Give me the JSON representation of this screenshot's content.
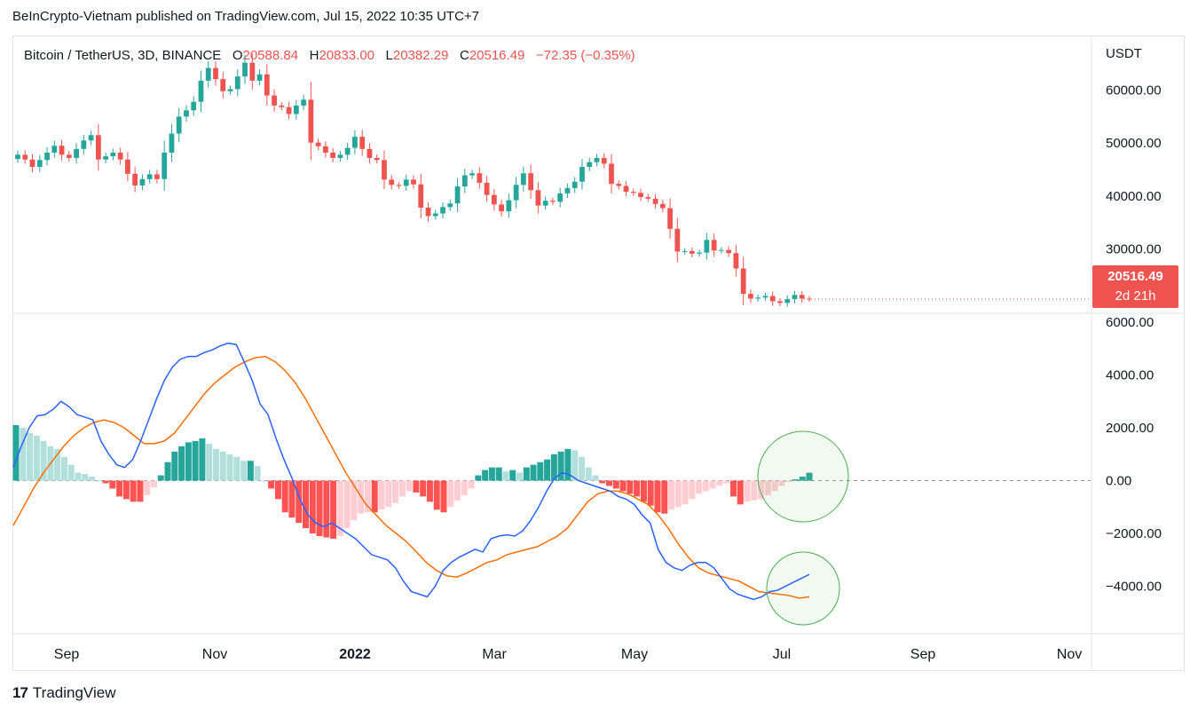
{
  "header": {
    "text": "BeInCrypto-Vietnam published on TradingView.com, Jul 15, 2022 10:35 UTC+7"
  },
  "legend": {
    "symbol": "Bitcoin / TetherUS, 3D, BINANCE",
    "open_label": "O",
    "open": "20588.84",
    "high_label": "H",
    "high": "20833.00",
    "low_label": "L",
    "low": "20382.29",
    "close_label": "C",
    "close": "20516.49",
    "change": "−72.35 (−0.35%)"
  },
  "price_badge": {
    "price": "20516.49",
    "countdown": "2d 21h"
  },
  "currency": "USDT",
  "footer": {
    "brand_glyph": "17",
    "brand": "TradingView"
  },
  "colors": {
    "up": "#26a69a",
    "down": "#ef5350",
    "hist_up_strong": "#26a69a",
    "hist_up_weak": "#b2dfdb",
    "hist_down_strong": "#ff5252",
    "hist_down_weak": "#ffcdd2",
    "macd_line": "#2962ff",
    "signal_line": "#ff6d00",
    "highlight_circle": "#4caf50"
  },
  "chart_data": [
    {
      "type": "candlestick",
      "title": "Bitcoin / TetherUS, 3D, BINANCE",
      "x_tick_labels": [
        "Sep",
        "Nov",
        "2022",
        "Mar",
        "May",
        "Jul",
        "Sep",
        "Nov"
      ],
      "y_tick_labels": [
        "30000.00",
        "40000.00",
        "50000.00",
        "60000.00"
      ],
      "y_ticks": [
        30000,
        40000,
        50000,
        60000
      ],
      "ylim": [
        18000,
        70000
      ],
      "grid": false,
      "last_price": 20516.49,
      "close": [
        47800,
        46900,
        45500,
        46800,
        48200,
        49500,
        47800,
        47200,
        48900,
        50500,
        51500,
        46900,
        47500,
        48200,
        46900,
        44200,
        42000,
        43200,
        44100,
        43200,
        48200,
        51800,
        55000,
        56200,
        57800,
        61800,
        64200,
        62100,
        59800,
        60200,
        62600,
        65200,
        61800,
        63000,
        59000,
        57100,
        56800,
        55500,
        57100,
        58200,
        50100,
        49400,
        48200,
        47200,
        47800,
        49100,
        51200,
        48900,
        47200,
        46800,
        43100,
        42100,
        41900,
        43100,
        42200,
        37800,
        36200,
        36700,
        37900,
        38600,
        41800,
        43900,
        44300,
        42500,
        40200,
        38400,
        37100,
        39200,
        42100,
        44300,
        41100,
        38200,
        39100,
        38900,
        40500,
        41500,
        42700,
        45500,
        46400,
        47200,
        46100,
        42300,
        41900,
        40800,
        40600,
        39800,
        39500,
        38500,
        37700,
        33800,
        29500,
        29600,
        29100,
        29300,
        31700,
        29700,
        29800,
        29200,
        26300,
        21500,
        20600,
        20800,
        21100,
        20100,
        19800,
        20500,
        21300,
        20600,
        20516.49
      ]
    },
    {
      "type": "macd",
      "y_tick_labels": [
        "6000.00",
        "4000.00",
        "2000.00",
        "0.00",
        "−2000.00",
        "−4000.00"
      ],
      "y_ticks": [
        6000,
        4000,
        2000,
        0,
        -2000,
        -4000
      ],
      "ylim": [
        -5760,
        6300
      ],
      "zero_line": "dashed",
      "macd": [
        500,
        1300,
        2000,
        2450,
        2500,
        2700,
        3000,
        2800,
        2500,
        2400,
        2300,
        1500,
        1000,
        600,
        500,
        800,
        1500,
        2300,
        3100,
        3800,
        4300,
        4600,
        4700,
        4700,
        4850,
        4950,
        5100,
        5200,
        5150,
        4500,
        3800,
        2900,
        2500,
        1600,
        800,
        100,
        -700,
        -1300,
        -1600,
        -1750,
        -1600,
        -1800,
        -2000,
        -2200,
        -2500,
        -2800,
        -2900,
        -3000,
        -3300,
        -3800,
        -4200,
        -4300,
        -4400,
        -4000,
        -3400,
        -3100,
        -2900,
        -2750,
        -2600,
        -2700,
        -2200,
        -2100,
        -2050,
        -2100,
        -1900,
        -1500,
        -1000,
        -400,
        100,
        300,
        200,
        0,
        -100,
        -200,
        -300,
        -400,
        -600,
        -700,
        -900,
        -1300,
        -1600,
        -2600,
        -3100,
        -3300,
        -3400,
        -3200,
        -3100,
        -3100,
        -3300,
        -3700,
        -4100,
        -4300,
        -4400,
        -4500,
        -4400,
        -4200,
        -4150,
        -4000,
        -3850,
        -3700,
        -3550
      ],
      "signal": [
        -1700,
        -1000,
        -300,
        300,
        800,
        1300,
        1700,
        2000,
        2200,
        2300,
        2200,
        2000,
        1700,
        1400,
        1400,
        1500,
        1800,
        2300,
        2800,
        3300,
        3700,
        4000,
        4300,
        4500,
        4650,
        4700,
        4500,
        4150,
        3700,
        3100,
        2400,
        1700,
        1000,
        300,
        -300,
        -900,
        -1300,
        -1700,
        -2000,
        -2300,
        -2700,
        -3100,
        -3400,
        -3600,
        -3650,
        -3500,
        -3300,
        -3100,
        -3000,
        -2800,
        -2700,
        -2600,
        -2500,
        -2300,
        -2100,
        -1800,
        -1300,
        -800,
        -500,
        -400,
        -400,
        -500,
        -700,
        -900,
        -1300,
        -1800,
        -2400,
        -2900,
        -3300,
        -3500,
        -3600,
        -3700,
        -3800,
        -4000,
        -4200,
        -4250,
        -4300,
        -4350,
        -4450,
        -4400
      ],
      "histogram": [
        2100,
        2000,
        1800,
        1700,
        1500,
        1300,
        1200,
        900,
        600,
        300,
        250,
        150,
        0,
        -100,
        -300,
        -600,
        -700,
        -800,
        -800,
        -550,
        -250,
        200,
        700,
        1100,
        1300,
        1450,
        1500,
        1600,
        1400,
        1200,
        1100,
        1000,
        900,
        750,
        750,
        550,
        0,
        -300,
        -700,
        -1200,
        -1400,
        -1600,
        -1800,
        -2000,
        -2100,
        -2150,
        -2200,
        -2100,
        -1800,
        -1500,
        -1250,
        -1200,
        -1200,
        -1100,
        -1000,
        -850,
        -600,
        -400,
        -450,
        -600,
        -800,
        -1100,
        -1200,
        -1000,
        -750,
        -550,
        -300,
        200,
        400,
        500,
        500,
        350,
        400,
        300,
        500,
        600,
        700,
        800,
        1000,
        1100,
        1200,
        1150,
        900,
        500,
        200,
        -100,
        -200,
        -300,
        -400,
        -500,
        -600,
        -800,
        -950,
        -1200,
        -1250,
        -1100,
        -1000,
        -900,
        -700,
        -500,
        -400,
        -300,
        -200,
        -100,
        -600,
        -900,
        -800,
        -750,
        -700,
        -550,
        -400,
        -200,
        -50,
        50,
        150,
        300
      ],
      "highlight_circles": 2
    }
  ],
  "time_axis": [
    "Sep",
    "Nov",
    "2022",
    "Mar",
    "May",
    "Jul",
    "Sep",
    "Nov"
  ]
}
